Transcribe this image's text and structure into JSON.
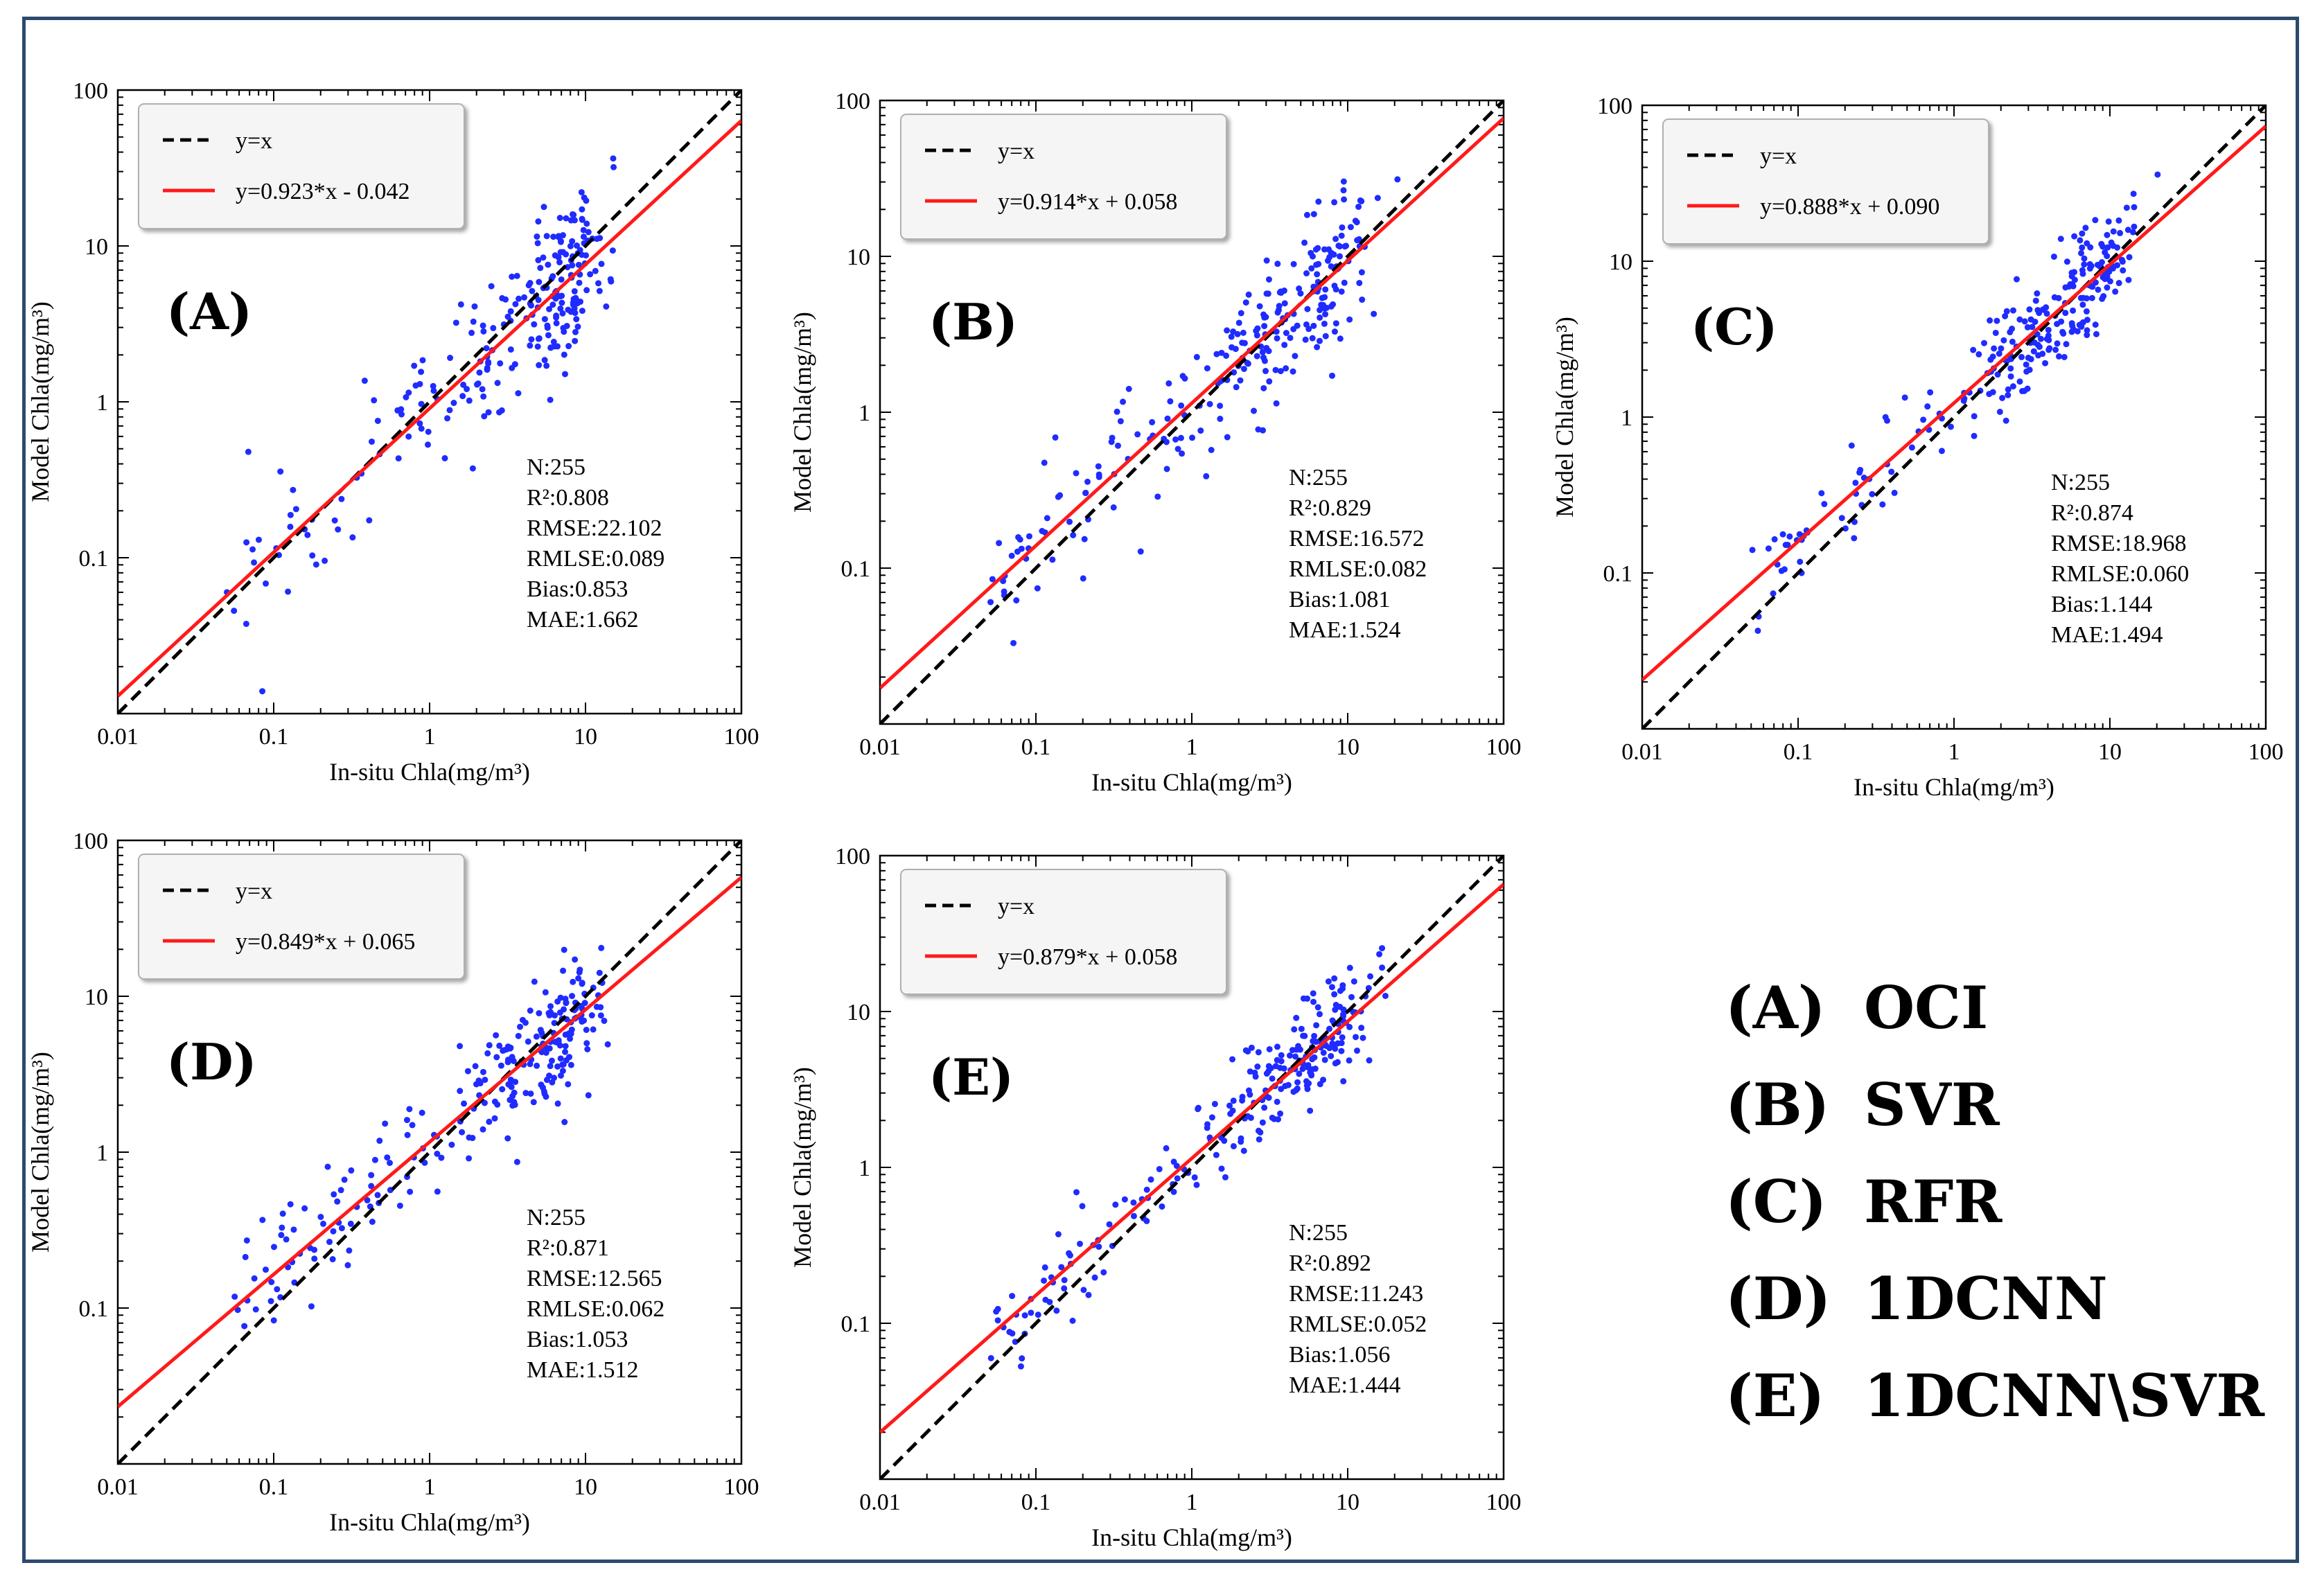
{
  "colors": {
    "frame": "#2c4a6e",
    "points": "#1f2bff",
    "fit_line": "#ff1a1a",
    "identity_line": "#000000"
  },
  "chart_data": [
    {
      "id": "A",
      "type": "scatter",
      "panel_label": "(A)",
      "xlabel": "In-situ Chla(mg/m³)",
      "ylabel": "Model Chla(mg/m³)",
      "xscale": "log",
      "yscale": "log",
      "xlim": [
        0.01,
        100
      ],
      "ylim": [
        0.01,
        100
      ],
      "xticks": [
        "0.01",
        "0.1",
        "1",
        "10",
        "100"
      ],
      "yticks": [
        "0.1",
        "1",
        "10",
        "100"
      ],
      "legend": [
        "y=x",
        "y=0.923*x - 0.042"
      ],
      "fit": {
        "slope": 0.923,
        "intercept": -0.042
      },
      "stats": [
        "N:255",
        "R²:0.808",
        "RMSE:22.102",
        "RMLSE:0.089",
        "Bias:0.853",
        "MAE:1.662"
      ],
      "seed": 11,
      "spread": 0.26
    },
    {
      "id": "B",
      "type": "scatter",
      "panel_label": "(B)",
      "xlabel": "In-situ Chla(mg/m³)",
      "ylabel": "Model Chla(mg/m³)",
      "xscale": "log",
      "yscale": "log",
      "xlim": [
        0.01,
        100
      ],
      "ylim": [
        0.01,
        100
      ],
      "xticks": [
        "0.01",
        "0.1",
        "1",
        "10",
        "100"
      ],
      "yticks": [
        "0.1",
        "1",
        "10",
        "100"
      ],
      "legend": [
        "y=x",
        "y=0.914*x + 0.058"
      ],
      "fit": {
        "slope": 0.914,
        "intercept": 0.058
      },
      "stats": [
        "N:255",
        "R²:0.829",
        "RMSE:16.572",
        "RMLSE:0.082",
        "Bias:1.081",
        "MAE:1.524"
      ],
      "seed": 23,
      "spread": 0.22
    },
    {
      "id": "C",
      "type": "scatter",
      "panel_label": "(C)",
      "xlabel": "In-situ Chla(mg/m³)",
      "ylabel": "Model Chla(mg/m³)",
      "xscale": "log",
      "yscale": "log",
      "xlim": [
        0.01,
        100
      ],
      "ylim": [
        0.01,
        100
      ],
      "xticks": [
        "0.01",
        "0.1",
        "1",
        "10",
        "100"
      ],
      "yticks": [
        "0.1",
        "1",
        "10",
        "100"
      ],
      "legend": [
        "y=x",
        "y=0.888*x + 0.090"
      ],
      "fit": {
        "slope": 0.888,
        "intercept": 0.09
      },
      "stats": [
        "N:255",
        "R²:0.874",
        "RMSE:18.968",
        "RMLSE:0.060",
        "Bias:1.144",
        "MAE:1.494"
      ],
      "seed": 37,
      "spread": 0.18
    },
    {
      "id": "D",
      "type": "scatter",
      "panel_label": "(D)",
      "xlabel": "In-situ Chla(mg/m³)",
      "ylabel": "Model Chla(mg/m³)",
      "xscale": "log",
      "yscale": "log",
      "xlim": [
        0.01,
        100
      ],
      "ylim": [
        0.01,
        100
      ],
      "xticks": [
        "0.01",
        "0.1",
        "1",
        "10",
        "100"
      ],
      "yticks": [
        "0.1",
        "1",
        "10",
        "100"
      ],
      "legend": [
        "y=x",
        "y=0.849*x + 0.065"
      ],
      "fit": {
        "slope": 0.849,
        "intercept": 0.065
      },
      "stats": [
        "N:255",
        "R²:0.871",
        "RMSE:12.565",
        "RMLSE:0.062",
        "Bias:1.053",
        "MAE:1.512"
      ],
      "seed": 51,
      "spread": 0.19
    },
    {
      "id": "E",
      "type": "scatter",
      "panel_label": "(E)",
      "xlabel": "In-situ Chla(mg/m³)",
      "ylabel": "Model Chla(mg/m³)",
      "xscale": "log",
      "yscale": "log",
      "xlim": [
        0.01,
        100
      ],
      "ylim": [
        0.01,
        100
      ],
      "xticks": [
        "0.01",
        "0.1",
        "1",
        "10",
        "100"
      ],
      "yticks": [
        "0.1",
        "1",
        "10",
        "100"
      ],
      "legend": [
        "y=x",
        "y=0.879*x + 0.058"
      ],
      "fit": {
        "slope": 0.879,
        "intercept": 0.058
      },
      "stats": [
        "N:255",
        "R²:0.892",
        "RMSE:11.243",
        "RMLSE:0.052",
        "Bias:1.056",
        "MAE:1.444"
      ],
      "seed": 67,
      "spread": 0.16
    }
  ],
  "method_key": [
    {
      "letter": "(A)",
      "name": "OCI"
    },
    {
      "letter": "(B)",
      "name": "SVR"
    },
    {
      "letter": "(C)",
      "name": "RFR"
    },
    {
      "letter": "(D)",
      "name": "1DCNN"
    },
    {
      "letter": "(E)",
      "name": "1DCNN\\SVR"
    }
  ]
}
